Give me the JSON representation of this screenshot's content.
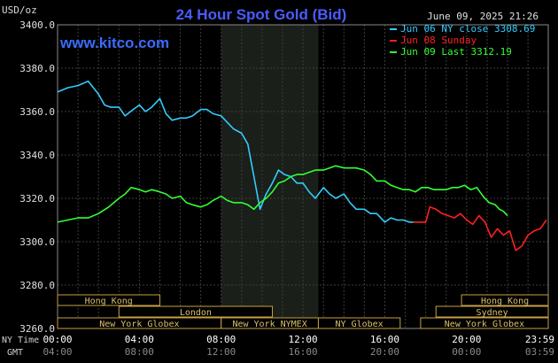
{
  "chart_data": {
    "type": "line",
    "title": "24 Hour Spot Gold (Bid)",
    "subtitle": "www.kitco.com",
    "y_unit": "USD/oz",
    "timestamp": "June 09, 2025 21:26",
    "ylim": [
      3260,
      3400
    ],
    "y_ticks": [
      "3260.0",
      "3280.0",
      "3300.0",
      "3320.0",
      "3340.0",
      "3360.0",
      "3380.0",
      "3400.0"
    ],
    "x_ticks_ny": [
      "00:00",
      "04:00",
      "08:00",
      "12:00",
      "16:00",
      "20:00",
      "23:59"
    ],
    "x_ticks_gmt": [
      "04:00",
      "08:00",
      "12:00",
      "16:00",
      "20:00",
      "00:00",
      "03:59"
    ],
    "x_row_labels": [
      "NY Time",
      "GMT"
    ],
    "shaded_hours": [
      8,
      12.75
    ],
    "legend": [
      {
        "label": "Jun 06 NY close 3308.69",
        "color": "#33ccff"
      },
      {
        "label": "Jun 08 Sunday",
        "color": "#ff2020"
      },
      {
        "label": "Jun 09 Last 3312.19",
        "color": "#33ff33"
      }
    ],
    "sessions": [
      {
        "label": "Hong Kong",
        "row": 0,
        "start": 0,
        "end": 5
      },
      {
        "label": "London",
        "row": 1,
        "start": 3,
        "end": 10.5
      },
      {
        "label": "New York Globex",
        "row": 2,
        "start": 0,
        "end": 8
      },
      {
        "label": "New York NYMEX",
        "row": 2,
        "start": 8,
        "end": 12.75
      },
      {
        "label": "NY Globex",
        "row": 2,
        "start": 12.75,
        "end": 16.75
      },
      {
        "label": "Hong Kong",
        "row": 0,
        "start": 19.75,
        "end": 23.99
      },
      {
        "label": "Sydney",
        "row": 1,
        "start": 18.5,
        "end": 23.99
      },
      {
        "label": "New York Globex",
        "row": 2,
        "start": 17.75,
        "end": 23.99
      }
    ],
    "series": [
      {
        "name": "Jun 06 NY close 3308.69",
        "color": "#33ccff",
        "x": [
          0,
          0.5,
          1.0,
          1.5,
          2.0,
          2.3,
          2.6,
          3.0,
          3.3,
          3.7,
          4.0,
          4.3,
          4.6,
          5.0,
          5.3,
          5.6,
          6.0,
          6.3,
          6.6,
          7.0,
          7.3,
          7.6,
          8.0,
          8.3,
          8.6,
          9.0,
          9.3,
          9.6,
          9.9,
          10.2,
          10.5,
          10.8,
          11.1,
          11.4,
          11.7,
          12.0,
          12.3,
          12.6,
          13.0,
          13.3,
          13.6,
          14.0,
          14.3,
          14.6,
          15.0,
          15.3,
          15.6,
          16.0,
          16.3,
          16.6,
          16.9,
          17.2,
          17.4
        ],
        "values": [
          3369,
          3371,
          3372,
          3374,
          3368,
          3363,
          3362,
          3362,
          3358,
          3361,
          3363,
          3360,
          3362,
          3366,
          3359,
          3356,
          3357,
          3357,
          3358,
          3361,
          3361,
          3359,
          3358,
          3355,
          3352,
          3350,
          3345,
          3330,
          3315,
          3322,
          3327,
          3333,
          3331,
          3330,
          3327,
          3327,
          3323,
          3320,
          3325,
          3322,
          3320,
          3322,
          3318,
          3315,
          3315,
          3313,
          3313,
          3309,
          3311,
          3310,
          3310,
          3309,
          3309
        ]
      },
      {
        "name": "Jun 08 Sunday",
        "color": "#ff2020",
        "x": [
          17.4,
          17.7,
          18.0,
          18.2,
          18.5,
          18.8,
          19.1,
          19.4,
          19.7,
          20.0,
          20.3,
          20.6,
          20.9,
          21.2,
          21.5,
          21.8,
          22.1,
          22.4,
          22.7,
          23.0,
          23.3,
          23.6,
          23.9
        ],
        "values": [
          3309,
          3309,
          3309,
          3316,
          3315,
          3313,
          3312,
          3311,
          3313,
          3310,
          3308,
          3312,
          3309,
          3302,
          3306,
          3303,
          3305,
          3296,
          3298,
          3303,
          3305,
          3306,
          3310
        ]
      },
      {
        "name": "Jun 09 Last 3312.19",
        "color": "#33ff33",
        "x": [
          0,
          0.5,
          1.0,
          1.5,
          2.0,
          2.5,
          3.0,
          3.3,
          3.6,
          4.0,
          4.3,
          4.6,
          5.0,
          5.3,
          5.6,
          6.0,
          6.3,
          6.6,
          7.0,
          7.3,
          7.6,
          8.0,
          8.3,
          8.6,
          9.0,
          9.3,
          9.6,
          9.9,
          10.2,
          10.5,
          10.8,
          11.1,
          11.4,
          11.7,
          12.0,
          12.3,
          12.6,
          13.0,
          13.3,
          13.6,
          14.0,
          14.3,
          14.6,
          15.0,
          15.3,
          15.6,
          16.0,
          16.3,
          16.6,
          16.9,
          17.2,
          17.5,
          17.8,
          18.1,
          18.4,
          18.7,
          19.0,
          19.3,
          19.6,
          19.9,
          20.2,
          20.5,
          20.8,
          21.1,
          21.4,
          21.6,
          21.8,
          22.0
        ],
        "values": [
          3309,
          3310,
          3311,
          3311,
          3313,
          3316,
          3320,
          3322,
          3325,
          3324,
          3323,
          3324,
          3323,
          3322,
          3320,
          3321,
          3318,
          3317,
          3316,
          3317,
          3319,
          3321,
          3319,
          3318,
          3318,
          3317,
          3315,
          3318,
          3320,
          3323,
          3327,
          3328,
          3330,
          3331,
          3331,
          3332,
          3333,
          3333,
          3334,
          3335,
          3334,
          3334,
          3334,
          3333,
          3331,
          3328,
          3328,
          3326,
          3325,
          3324,
          3324,
          3323,
          3325,
          3325,
          3324,
          3324,
          3324,
          3325,
          3325,
          3326,
          3324,
          3325,
          3321,
          3318,
          3317,
          3315,
          3314,
          3312
        ]
      }
    ]
  }
}
